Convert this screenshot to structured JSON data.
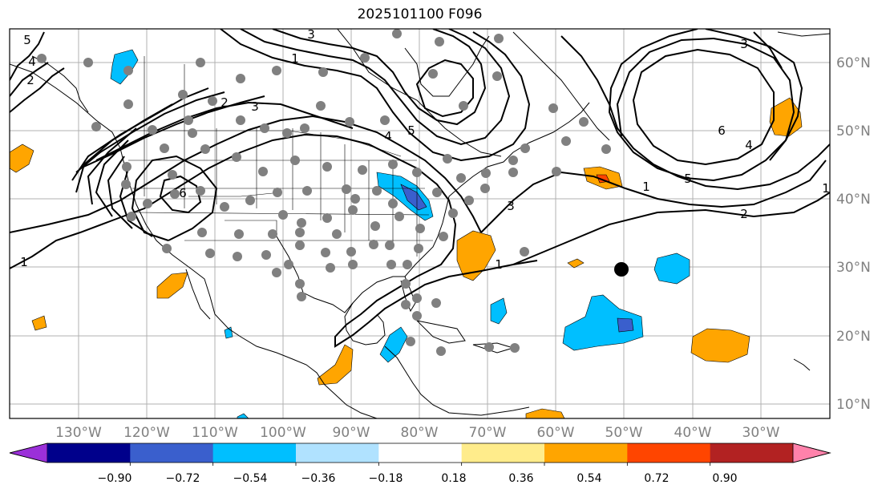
{
  "title": "2025101100 F096",
  "lat_labels": [
    "60°N",
    "50°N",
    "40°N",
    "30°N",
    "20°N",
    "10°N"
  ],
  "lon_labels": [
    "130°W",
    "120°W",
    "110°W",
    "100°W",
    "90°W",
    "80°W",
    "70°W",
    "60°W",
    "50°W",
    "40°W",
    "30°W"
  ],
  "colorbar": {
    "colors": [
      "#9b30d9",
      "#00008b",
      "#3a5fcd",
      "#00bfff",
      "#b0e2ff",
      "#ffffff",
      "#ffec8b",
      "#ffa500",
      "#ff4500",
      "#b22222",
      "#ff82ab"
    ],
    "tick_labels": [
      "−0.90",
      "−0.72",
      "−0.54",
      "−0.36",
      "−0.18",
      "0.18",
      "0.36",
      "0.54",
      "0.72",
      "0.90"
    ]
  },
  "contour_labels": [
    "5",
    "4",
    "3",
    "2",
    "1",
    "6",
    "3",
    "4",
    "5",
    "2",
    "1",
    "6",
    "5",
    "4",
    "3",
    "1",
    "2",
    "3",
    "1",
    "1"
  ],
  "colors": {
    "grid": "#b0b0b0",
    "stations": "#808080",
    "coast": "#000000",
    "positive_fill": "#ffa500",
    "negative_fill": "#00bfff"
  }
}
